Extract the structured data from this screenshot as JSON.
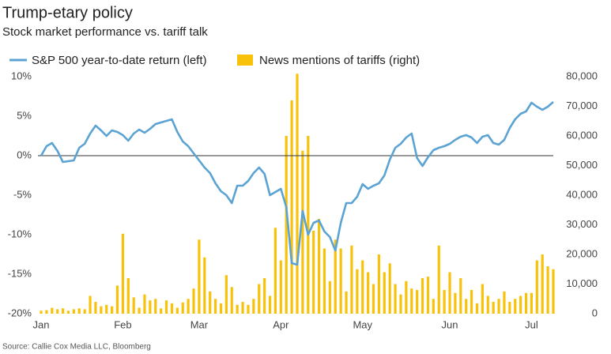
{
  "chart_data": {
    "type": "line_bar",
    "title": "Trump-etary policy",
    "subtitle": "Stock market performance vs. tariff talk",
    "source": "Source: Callie Cox Media LLC, Bloomberg",
    "categories": [
      "Jan",
      null,
      null,
      null,
      null,
      null,
      null,
      null,
      null,
      null,
      null,
      null,
      null,
      null,
      null,
      "Feb",
      null,
      null,
      null,
      null,
      null,
      null,
      null,
      null,
      null,
      null,
      null,
      null,
      null,
      "Mar",
      null,
      null,
      null,
      null,
      null,
      null,
      null,
      null,
      null,
      null,
      null,
      null,
      null,
      null,
      "Apr",
      null,
      null,
      null,
      null,
      null,
      null,
      null,
      null,
      null,
      null,
      null,
      null,
      null,
      null,
      "May",
      null,
      null,
      null,
      null,
      null,
      null,
      null,
      null,
      null,
      null,
      null,
      null,
      null,
      null,
      null,
      "Jun",
      null,
      null,
      null,
      null,
      null,
      null,
      null,
      null,
      null,
      null,
      null,
      null,
      null,
      null,
      "Jul",
      null,
      null,
      null,
      null
    ],
    "series": [
      {
        "name": "S&P 500 year-to-date return (left)",
        "type": "line",
        "color": "#5ba3d3",
        "axis": "y",
        "values": [
          0,
          1.2,
          1.6,
          0.6,
          -0.8,
          -0.7,
          -0.6,
          1.0,
          1.5,
          2.8,
          3.8,
          3.2,
          2.5,
          3.2,
          3.0,
          2.6,
          1.9,
          2.8,
          3.3,
          2.9,
          3.4,
          4.0,
          4.2,
          4.4,
          4.6,
          3.0,
          1.8,
          1.2,
          0.3,
          -0.6,
          -1.5,
          -2.2,
          -3.5,
          -4.5,
          -5.0,
          -6.0,
          -3.8,
          -3.8,
          -3.2,
          -2.2,
          -1.5,
          -2.3,
          -5.0,
          -4.6,
          -4.2,
          -6.5,
          -13.6,
          -13.8,
          -7.0,
          -10.0,
          -8.5,
          -8.2,
          -9.6,
          -10.3,
          -12.0,
          -8.5,
          -6.0,
          -6.0,
          -5.2,
          -3.6,
          -4.2,
          -3.8,
          -3.5,
          -2.5,
          -0.5,
          1.0,
          1.5,
          2.3,
          2.8,
          -0.3,
          -1.3,
          -0.2,
          0.7,
          1.0,
          1.2,
          1.5,
          2.0,
          2.4,
          2.6,
          2.3,
          1.6,
          2.4,
          2.6,
          1.6,
          1.4,
          2.0,
          3.5,
          4.6,
          5.3,
          5.6,
          6.7,
          6.2,
          5.8,
          6.2,
          6.8
        ]
      },
      {
        "name": "News mentions of tariffs (right)",
        "type": "bar",
        "color": "#f9c20a",
        "axis": "y2",
        "values": [
          1000,
          1200,
          2000,
          1500,
          1800,
          1000,
          1500,
          1800,
          1500,
          6000,
          4000,
          2500,
          3000,
          2500,
          9500,
          27000,
          12000,
          5500,
          2000,
          6500,
          4500,
          5000,
          1800,
          4500,
          3500,
          2000,
          3800,
          5000,
          8500,
          25000,
          19000,
          7500,
          5000,
          3500,
          13000,
          9000,
          3000,
          4000,
          3000,
          5000,
          10000,
          12000,
          6000,
          29000,
          18000,
          60000,
          72000,
          81000,
          55000,
          60000,
          28000,
          32000,
          22000,
          11000,
          25000,
          22000,
          7500,
          23000,
          15000,
          18000,
          14000,
          10000,
          20000,
          14000,
          17000,
          10000,
          6500,
          11000,
          8500,
          8000,
          12000,
          12500,
          5000,
          23000,
          8000,
          14000,
          7000,
          12000,
          5000,
          8000,
          3500,
          10000,
          6000,
          4000,
          5000,
          7500,
          4000,
          5000,
          6000,
          7000,
          7000,
          18000,
          20000,
          16000,
          15000
        ]
      }
    ],
    "ylim": [
      -20,
      10
    ],
    "yticks": [
      {
        "value": -20,
        "label": "-20%"
      },
      {
        "value": -15,
        "label": "-15%"
      },
      {
        "value": -10,
        "label": "-10%"
      },
      {
        "value": -5,
        "label": "-5%"
      },
      {
        "value": 0,
        "label": "0%"
      },
      {
        "value": 5,
        "label": "5%"
      },
      {
        "value": 10,
        "label": "10%"
      }
    ],
    "y2lim": [
      0,
      80000
    ],
    "y2ticks": [
      0,
      {
        "value": 10000,
        "label": "10,000"
      },
      {
        "value": 20000,
        "label": "20,000"
      },
      {
        "value": 30000,
        "label": "30,000"
      },
      {
        "value": 40000,
        "label": "40,000"
      },
      {
        "value": 50000,
        "label": "50,000"
      },
      {
        "value": 60000,
        "label": "60,000"
      },
      {
        "value": 70000,
        "label": "70,000"
      },
      {
        "value": 80000,
        "label": "80,000"
      }
    ],
    "zero_line": true,
    "legend": "top-left"
  }
}
